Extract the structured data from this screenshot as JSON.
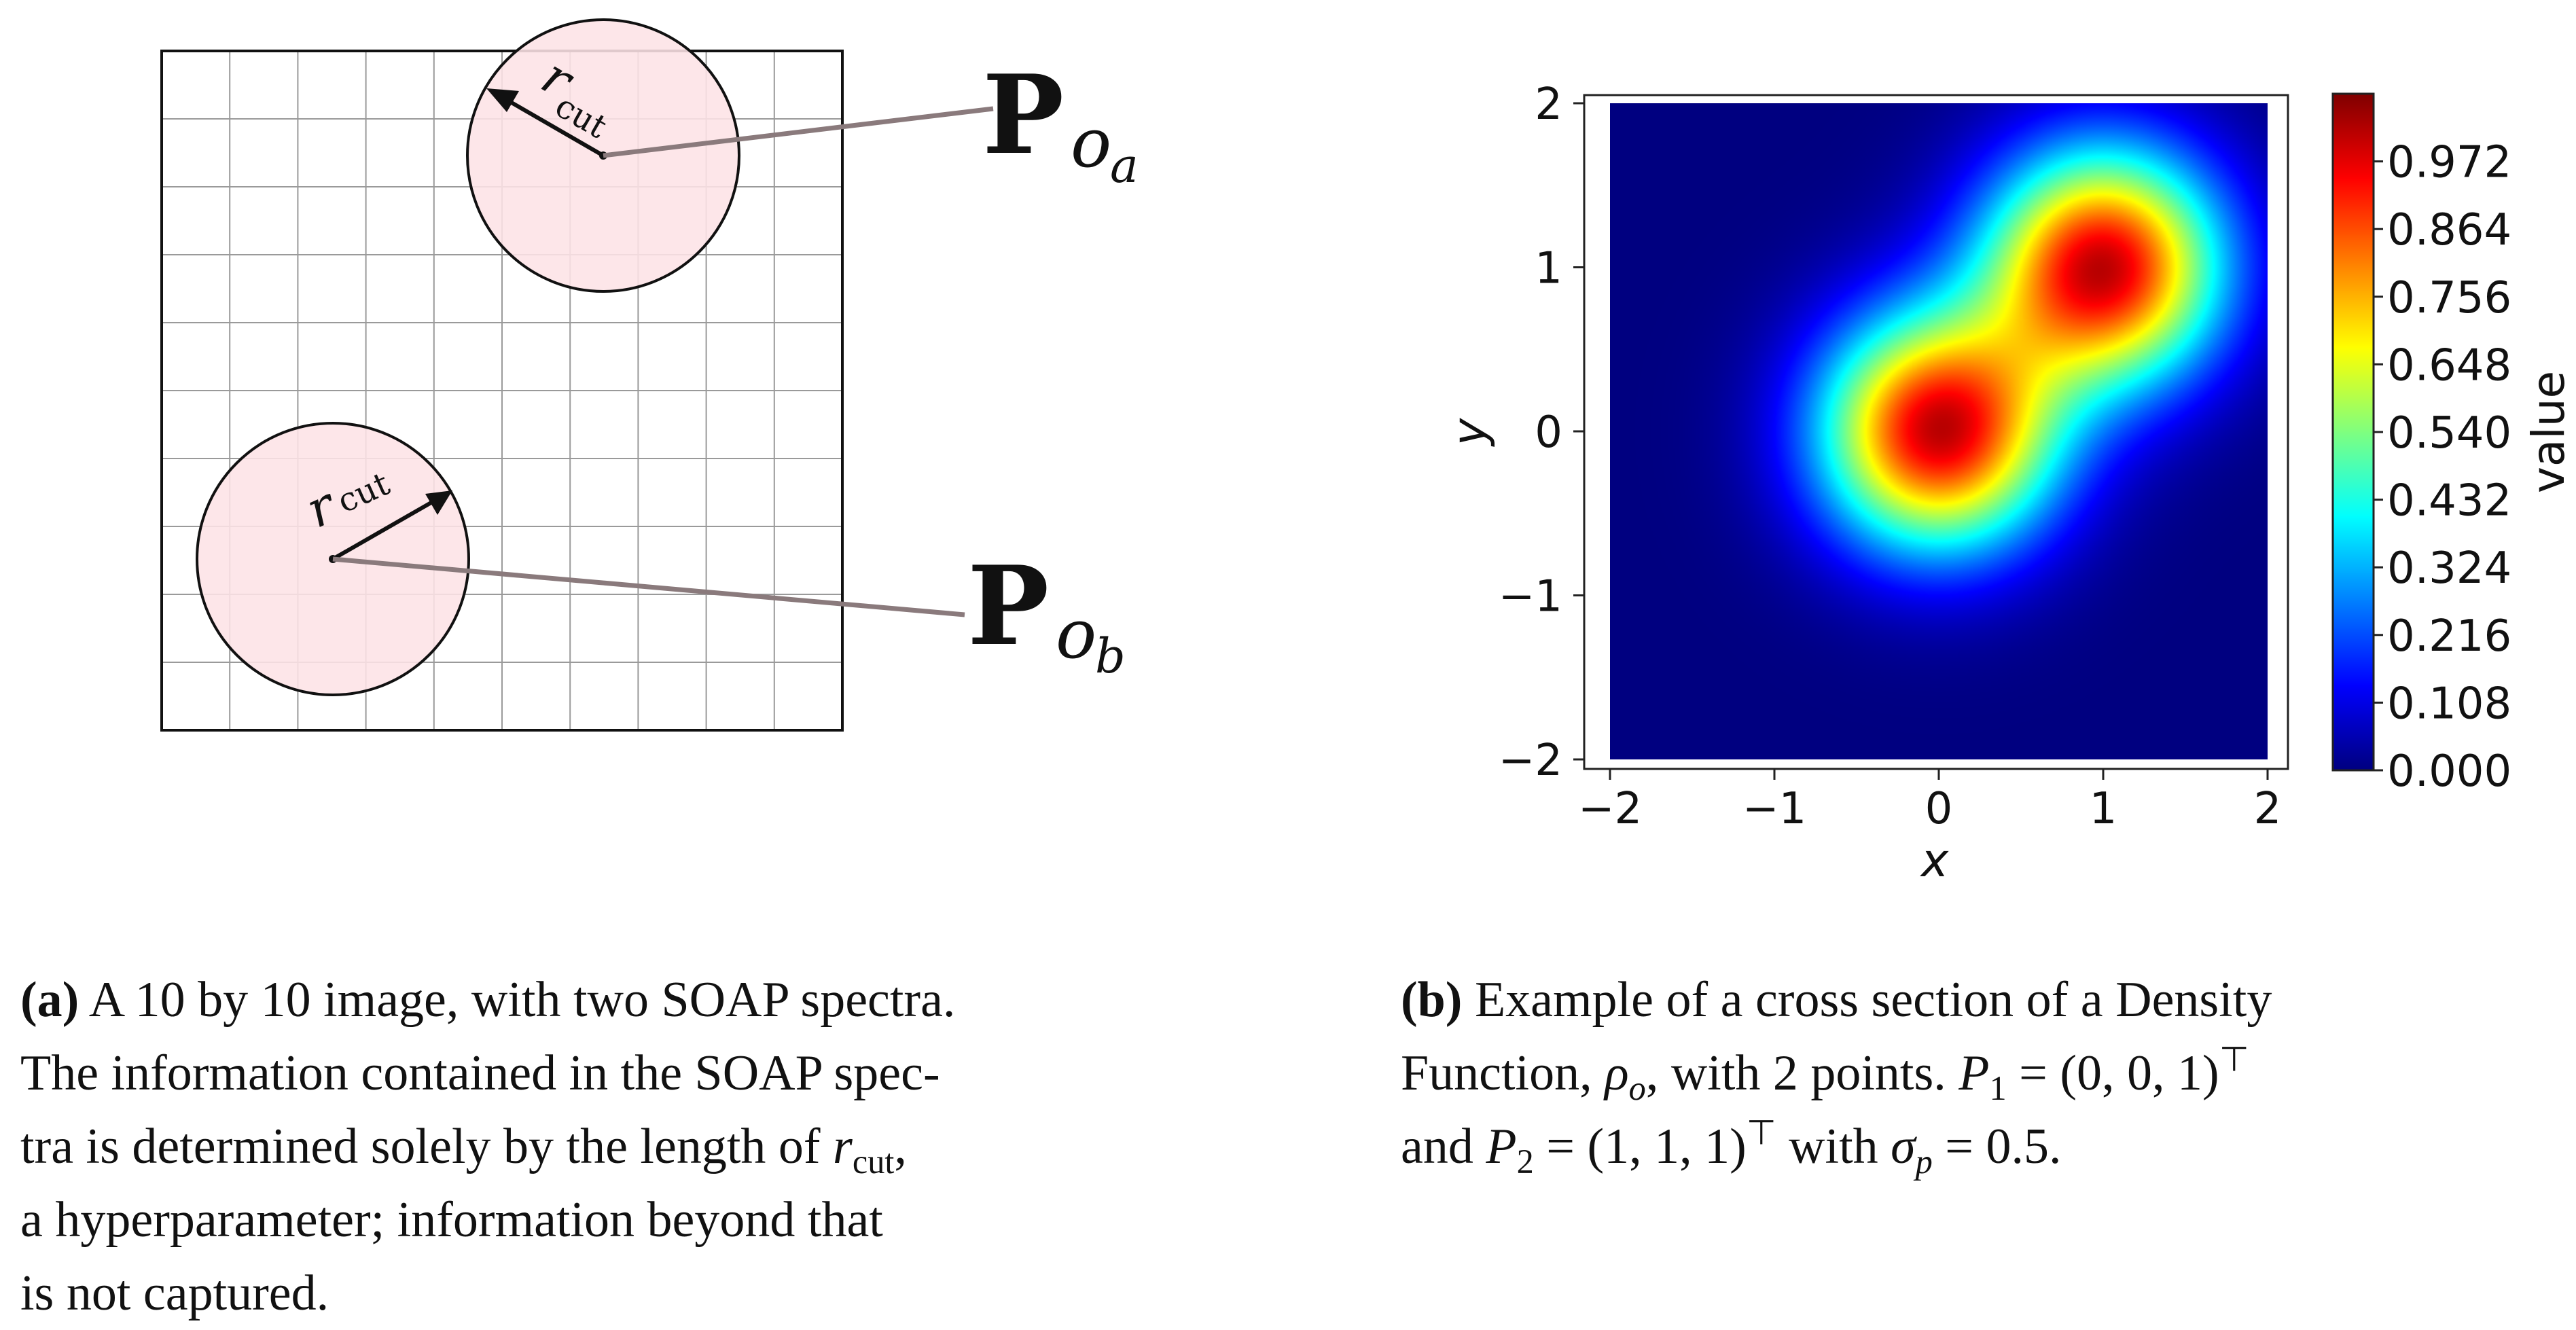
{
  "panel_a": {
    "grid": {
      "rows": 10,
      "cols": 10
    },
    "labels": {
      "r": "r",
      "cut": "cut",
      "P": "P",
      "o": "o",
      "sub_a": "a",
      "sub_b": "b"
    },
    "colors": {
      "circle_fill": "#fde2e6",
      "connector": "#8a7a7c"
    }
  },
  "chart_data": {
    "type": "heatmap",
    "title": "",
    "xlabel": "x",
    "ylabel": "y",
    "xlim": [
      -2,
      2
    ],
    "ylim": [
      -2,
      2
    ],
    "x_ticks": [
      "−2",
      "−1",
      "0",
      "1",
      "2"
    ],
    "y_ticks": [
      "2",
      "1",
      "0",
      "−1",
      "−2"
    ],
    "peaks": [
      [
        0,
        0
      ],
      [
        1,
        1
      ]
    ],
    "sigma": 0.5,
    "colormap": "jet",
    "colorbar": {
      "label": "value",
      "range": [
        0,
        1.08
      ],
      "ticks": [
        "0.972",
        "0.864",
        "0.756",
        "0.648",
        "0.540",
        "0.432",
        "0.324",
        "0.216",
        "0.108",
        "0.000"
      ],
      "tick_values": [
        0.972,
        0.864,
        0.756,
        0.648,
        0.54,
        0.432,
        0.324,
        0.216,
        0.108,
        0.0
      ]
    }
  },
  "captions": {
    "a": {
      "label": "(a)",
      "line1": "A 10 by 10 image, with two SOAP spectra.",
      "line2": "The information contained in the SOAP spec-",
      "line3a": "tra is determined solely by the length of ",
      "r": "r",
      "cut": "cut",
      "line3b": ",",
      "line4": "a hyperparameter; information beyond that",
      "line5": "is not captured."
    },
    "b": {
      "label": "(b)",
      "line1": "Example of a cross section of a Density",
      "line2a": "Function, ",
      "rho": "ρ",
      "rho_sub": "o",
      "line2b": ", with 2 points.  ",
      "P1": "P",
      "P1_sub": "1",
      "P1_val": " = (0, 0, 1)",
      "top": "⊤",
      "line3a": "and ",
      "P2": "P",
      "P2_sub": "2",
      "P2_val": " = (1, 1, 1)",
      "line3b": " with ",
      "sigma": "σ",
      "sigma_sub": "p",
      "sigma_val": " = 0.5."
    }
  }
}
